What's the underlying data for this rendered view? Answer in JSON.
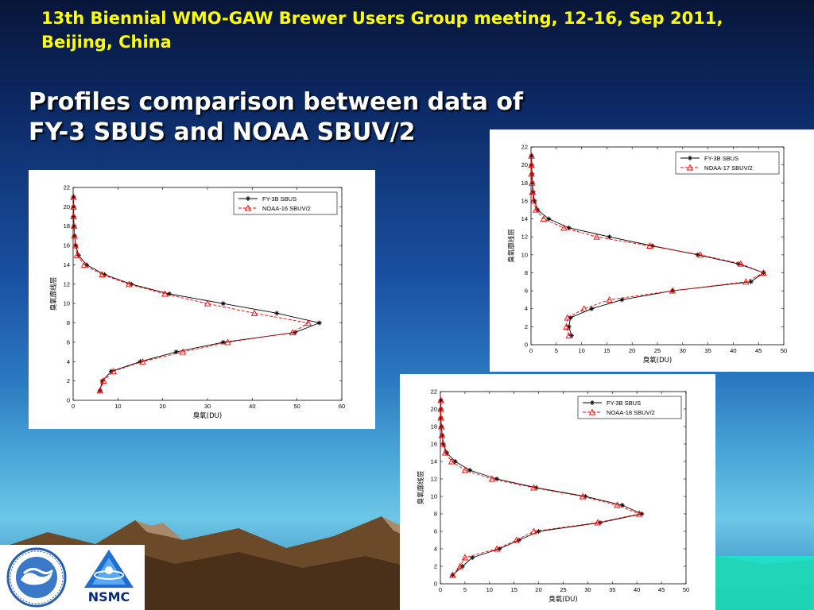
{
  "header": {
    "line1": "13th Biennial WMO-GAW Brewer Users Group meeting, 12-16, Sep 2011,",
    "line2": "Beijing, China"
  },
  "title": {
    "line1": "Profiles comparison between data of",
    "line2": "FY-3 SBUS and NOAA SBUV/2"
  },
  "logos": {
    "right_text": "NSMC",
    "left_icon": "cma-logo-icon",
    "right_icon": "nsmc-triangle-logo-icon"
  },
  "colors": {
    "header": "#ffff00",
    "series_fy3b": "#000000",
    "series_noaa": "#ff0000"
  },
  "chart_data": [
    {
      "type": "line",
      "xlabel": "臭氧(DU)",
      "ylabel": "臭氧廓线层",
      "xlim": [
        0,
        60
      ],
      "ylim": [
        0,
        22
      ],
      "xticks": [
        0,
        10,
        20,
        30,
        40,
        50,
        60
      ],
      "yticks": [
        0,
        2,
        4,
        6,
        8,
        10,
        12,
        14,
        16,
        18,
        20,
        22
      ],
      "legend": "top-right",
      "series": [
        {
          "name": "FY-3B SBUS",
          "color": "#000000",
          "marker": "star",
          "points": [
            [
              6.0,
              1
            ],
            [
              6.5,
              2
            ],
            [
              8.5,
              3
            ],
            [
              15,
              4
            ],
            [
              23,
              5
            ],
            [
              33.5,
              6
            ],
            [
              49.5,
              7
            ],
            [
              55,
              8
            ],
            [
              45.5,
              9
            ],
            [
              33.5,
              10
            ],
            [
              21.5,
              11
            ],
            [
              13,
              12
            ],
            [
              7,
              13
            ],
            [
              3,
              14
            ],
            [
              1.2,
              15
            ],
            [
              0.6,
              16
            ],
            [
              0.3,
              17
            ],
            [
              0.2,
              18
            ],
            [
              0.1,
              19
            ],
            [
              0.1,
              20
            ],
            [
              0.1,
              21
            ]
          ]
        },
        {
          "name": "NOAA-16 SBUV/2",
          "color": "#ff0000",
          "marker": "triangle",
          "points": [
            [
              6.0,
              1
            ],
            [
              6.8,
              2
            ],
            [
              9,
              3
            ],
            [
              15.5,
              4
            ],
            [
              24.5,
              5
            ],
            [
              34.5,
              6
            ],
            [
              49,
              7
            ],
            [
              52.5,
              8
            ],
            [
              40.5,
              9
            ],
            [
              30,
              10
            ],
            [
              20.5,
              11
            ],
            [
              12.5,
              12
            ],
            [
              6.5,
              13
            ],
            [
              2.5,
              14
            ],
            [
              0.9,
              15
            ],
            [
              0.5,
              16
            ],
            [
              0.3,
              17
            ],
            [
              0.2,
              18
            ],
            [
              0.1,
              19
            ],
            [
              0.1,
              20
            ],
            [
              0.1,
              21
            ]
          ]
        }
      ]
    },
    {
      "type": "line",
      "xlabel": "臭氧(DU)",
      "ylabel": "臭氧廓线层",
      "xlim": [
        0,
        50
      ],
      "ylim": [
        0,
        22
      ],
      "xticks": [
        0,
        5,
        10,
        15,
        20,
        25,
        30,
        35,
        40,
        45,
        50
      ],
      "yticks": [
        0,
        2,
        4,
        6,
        8,
        10,
        12,
        14,
        16,
        18,
        20,
        22
      ],
      "legend": "top-right",
      "series": [
        {
          "name": "FY-3B SBUS",
          "color": "#000000",
          "marker": "star",
          "points": [
            [
              8.0,
              1
            ],
            [
              7.5,
              2
            ],
            [
              7.8,
              3
            ],
            [
              12,
              4
            ],
            [
              18,
              5
            ],
            [
              28,
              6
            ],
            [
              43.5,
              7
            ],
            [
              46,
              8
            ],
            [
              41,
              9
            ],
            [
              33,
              10
            ],
            [
              24,
              11
            ],
            [
              15.5,
              12
            ],
            [
              7.5,
              13
            ],
            [
              3.5,
              14
            ],
            [
              1.3,
              15
            ],
            [
              0.7,
              16
            ],
            [
              0.4,
              17
            ],
            [
              0.3,
              18
            ],
            [
              0.2,
              19
            ],
            [
              0.1,
              20
            ],
            [
              0.1,
              21
            ]
          ]
        },
        {
          "name": "NOAA-17 SBUV/2",
          "color": "#ff0000",
          "marker": "triangle",
          "points": [
            [
              7.5,
              1
            ],
            [
              7.0,
              2
            ],
            [
              7.2,
              3
            ],
            [
              10.5,
              4
            ],
            [
              15.5,
              5
            ],
            [
              28,
              6
            ],
            [
              42.5,
              7
            ],
            [
              46,
              8
            ],
            [
              41.5,
              9
            ],
            [
              33.5,
              10
            ],
            [
              23.5,
              11
            ],
            [
              13,
              12
            ],
            [
              6.5,
              13
            ],
            [
              2.5,
              14
            ],
            [
              1.0,
              15
            ],
            [
              0.5,
              16
            ],
            [
              0.3,
              17
            ],
            [
              0.2,
              18
            ],
            [
              0.1,
              19
            ],
            [
              0.1,
              20
            ],
            [
              0.1,
              21
            ]
          ]
        }
      ]
    },
    {
      "type": "line",
      "xlabel": "臭氧(DU)",
      "ylabel": "臭氧廓线层",
      "xlim": [
        0,
        50
      ],
      "ylim": [
        0,
        22
      ],
      "xticks": [
        0,
        5,
        10,
        15,
        20,
        25,
        30,
        35,
        40,
        45,
        50
      ],
      "yticks": [
        0,
        2,
        4,
        6,
        8,
        10,
        12,
        14,
        16,
        18,
        20,
        22
      ],
      "legend": "top-right",
      "series": [
        {
          "name": "FY-3B SBUS",
          "color": "#000000",
          "marker": "star",
          "points": [
            [
              2.5,
              1
            ],
            [
              4.5,
              2
            ],
            [
              6.5,
              3
            ],
            [
              12,
              4
            ],
            [
              16,
              5
            ],
            [
              20,
              6
            ],
            [
              32.5,
              7
            ],
            [
              41,
              8
            ],
            [
              37,
              9
            ],
            [
              29.5,
              10
            ],
            [
              19.5,
              11
            ],
            [
              11.5,
              12
            ],
            [
              6,
              13
            ],
            [
              3,
              14
            ],
            [
              1.3,
              15
            ],
            [
              0.6,
              16
            ],
            [
              0.4,
              17
            ],
            [
              0.2,
              18
            ],
            [
              0.1,
              19
            ],
            [
              0.1,
              20
            ],
            [
              0.1,
              21
            ]
          ]
        },
        {
          "name": "NOAA-18 SBUV/2",
          "color": "#ff0000",
          "marker": "triangle",
          "points": [
            [
              2.5,
              1
            ],
            [
              4.0,
              2
            ],
            [
              5.0,
              3
            ],
            [
              11.5,
              4
            ],
            [
              15.5,
              5
            ],
            [
              19,
              6
            ],
            [
              32,
              7
            ],
            [
              40.5,
              8
            ],
            [
              36,
              9
            ],
            [
              29,
              10
            ],
            [
              19,
              11
            ],
            [
              10.5,
              12
            ],
            [
              5,
              13
            ],
            [
              2.3,
              14
            ],
            [
              1.0,
              15
            ],
            [
              0.5,
              16
            ],
            [
              0.3,
              17
            ],
            [
              0.2,
              18
            ],
            [
              0.1,
              19
            ],
            [
              0.1,
              20
            ],
            [
              0.1,
              21
            ]
          ]
        }
      ]
    }
  ]
}
